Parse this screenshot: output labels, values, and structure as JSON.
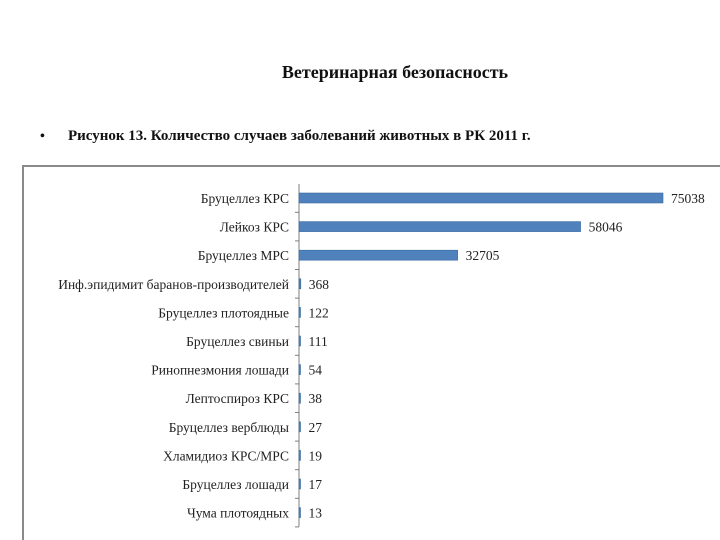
{
  "slide_title": "Ветеринарная безопасность",
  "bullet": "•",
  "caption": "Рисунок 13. Количество случаев заболеваний животных в РК 2011 г.",
  "colors": {
    "bar": "#4f81bd",
    "bar_edge": "#3a6a9f",
    "axis": "#7f7f7f"
  },
  "chart_data": {
    "type": "bar",
    "orientation": "horizontal",
    "categories": [
      "Бруцеллез КРС",
      "Лейкоз КРС",
      "Бруцеллез МРС",
      "Инф.эпидимит баранов-производителей",
      "Бруцеллез плотоядные",
      "Бруцеллез свиньи",
      "Ринопнезмония лошади",
      "Лептоспироз КРС",
      "Бруцеллез верблюды",
      "Хламидиоз КРС/МРС",
      "Бруцеллез лошади",
      "Чума плотоядных"
    ],
    "values": [
      75038,
      58046,
      32705,
      368,
      122,
      111,
      54,
      38,
      27,
      19,
      17,
      13
    ],
    "data_labels": [
      "75038",
      "58046",
      "32705",
      "368",
      "122",
      "111",
      "54",
      "38",
      "27",
      "19",
      "17",
      "13"
    ],
    "xlim": [
      0,
      75038
    ],
    "grid": false,
    "legend": "none"
  }
}
